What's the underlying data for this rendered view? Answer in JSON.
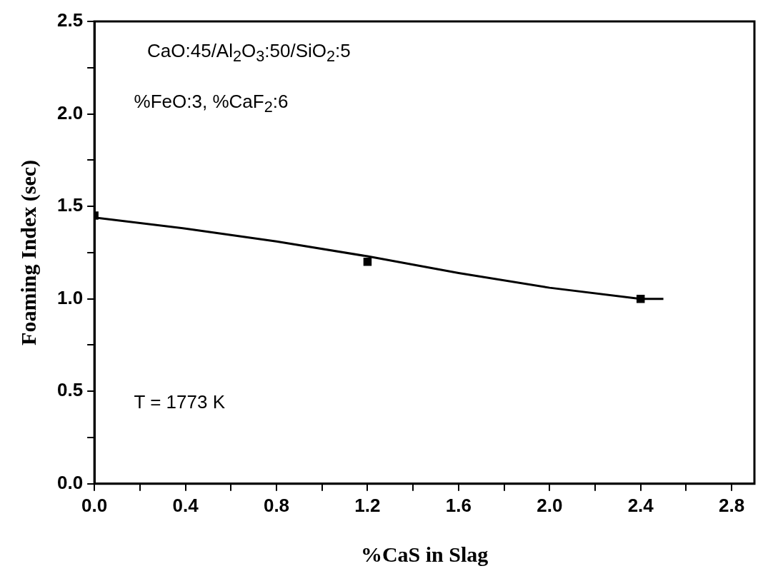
{
  "chart_data": {
    "type": "scatter",
    "xlabel": "%CaS in Slag",
    "ylabel": "Foaming Index (sec)",
    "series": [
      {
        "color": "#000000",
        "marker": "square",
        "x": [
          0,
          1.2,
          2.4
        ],
        "values": [
          1.45,
          1.2,
          1.0
        ]
      },
      {
        "type": "line",
        "color": "#000000",
        "marker": "none",
        "line_style": "solid",
        "x": [
          0,
          0.4,
          0.8,
          1.2,
          1.6,
          2.0,
          2.4,
          2.5
        ],
        "values": [
          1.44,
          1.38,
          1.31,
          1.23,
          1.14,
          1.06,
          1.0,
          1.0
        ]
      }
    ],
    "xlim": [
      0,
      2.9
    ],
    "xticks": [
      {
        "value": 0,
        "label": "0.0"
      },
      {
        "value": 0.2,
        "label": null
      },
      {
        "value": 0.4,
        "label": "0.4"
      },
      {
        "value": 0.6,
        "label": null
      },
      {
        "value": 0.8,
        "label": "0.8"
      },
      {
        "value": 1.0,
        "label": null
      },
      {
        "value": 1.2,
        "label": "1.2"
      },
      {
        "value": 1.4,
        "label": null
      },
      {
        "value": 1.6,
        "label": "1.6"
      },
      {
        "value": 1.8,
        "label": null
      },
      {
        "value": 2.0,
        "label": "2.0"
      },
      {
        "value": 2.2,
        "label": null
      },
      {
        "value": 2.4,
        "label": "2.4"
      },
      {
        "value": 2.6,
        "label": null
      },
      {
        "value": 2.8,
        "label": "2.8"
      }
    ],
    "ylim": [
      0,
      2.5
    ],
    "yticks": [
      {
        "value": 0,
        "label": "0.0"
      },
      {
        "value": 0.25,
        "label": null
      },
      {
        "value": 0.5,
        "label": "0.5"
      },
      {
        "value": 0.75,
        "label": null
      },
      {
        "value": 1.0,
        "label": "1.0"
      },
      {
        "value": 1.25,
        "label": null
      },
      {
        "value": 1.5,
        "label": "1.5"
      },
      {
        "value": 1.75,
        "label": null
      },
      {
        "value": 2.0,
        "label": "2.0"
      },
      {
        "value": 2.25,
        "label": null
      },
      {
        "value": 2.5,
        "label": "2.5"
      }
    ],
    "annotations": [
      "CaO:45/Al$_{2}$O$_{3}$:50/SiO$_{2}$:5",
      "%FeO:3, %CaF$_{2}$:6",
      "T = 1773 K"
    ],
    "grid": false,
    "legend": false
  }
}
